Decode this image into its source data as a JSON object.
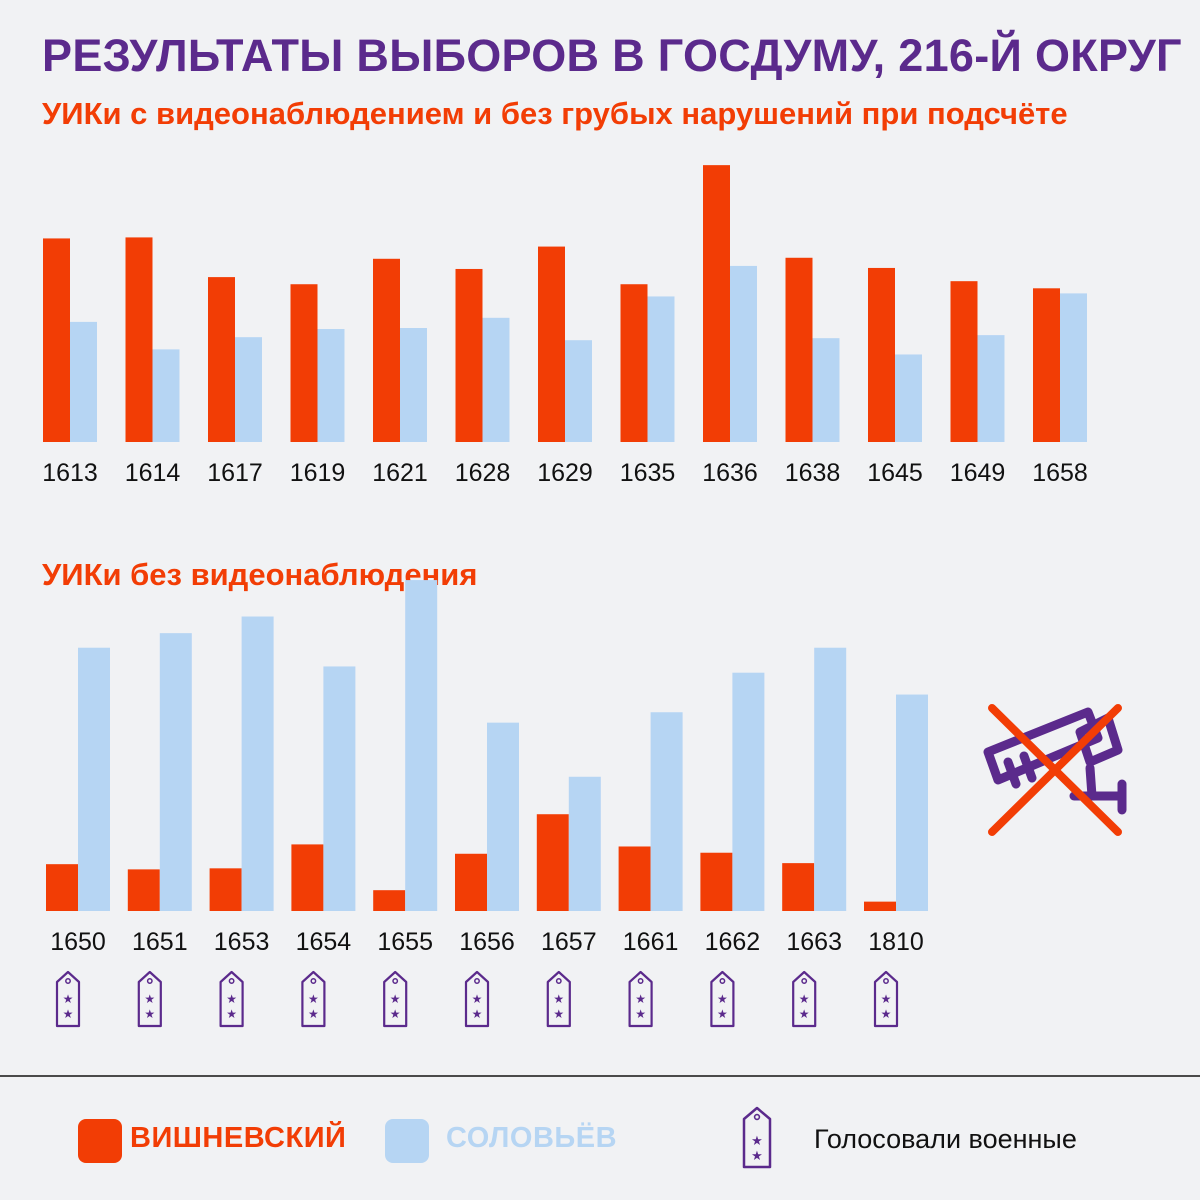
{
  "title": "РЕЗУЛЬТАТЫ ВЫБОРОВ В ГОСДУМУ, 216-Й ОКРУГ",
  "colors": {
    "vishnevsky": "#f23d05",
    "solovyov": "#b6d5f3",
    "accent": "#5b2a8c",
    "background": "#f1f2f4"
  },
  "chart_data": [
    {
      "type": "bar",
      "title": "УИКи с видеонаблюдением и без грубых нарушений при подсчёте",
      "categories": [
        "1613",
        "1614",
        "1617",
        "1619",
        "1621",
        "1628",
        "1629",
        "1635",
        "1636",
        "1638",
        "1645",
        "1649",
        "1658"
      ],
      "series": [
        {
          "name": "ВИШНЕВСКИЙ",
          "values": [
            200,
            201,
            162,
            155,
            180,
            170,
            192,
            155,
            272,
            181,
            171,
            158,
            151
          ]
        },
        {
          "name": "СОЛОВЬЁВ",
          "values": [
            118,
            91,
            103,
            111,
            112,
            122,
            100,
            143,
            173,
            102,
            86,
            105,
            146
          ]
        }
      ],
      "ylim": [
        0,
        280
      ],
      "grid": false,
      "xlabel": "",
      "ylabel": ""
    },
    {
      "type": "bar",
      "title": "УИКи без видеонаблюдения",
      "categories": [
        "1650",
        "1651",
        "1653",
        "1654",
        "1655",
        "1656",
        "1657",
        "1661",
        "1662",
        "1663",
        "1810"
      ],
      "series": [
        {
          "name": "ВИШНЕВСКИЙ",
          "values": [
            45,
            40,
            41,
            64,
            20,
            55,
            93,
            62,
            56,
            46,
            9
          ]
        },
        {
          "name": "СОЛОВЬЁВ",
          "values": [
            253,
            267,
            283,
            235,
            318,
            181,
            129,
            191,
            229,
            253,
            208
          ]
        }
      ],
      "military": [
        true,
        true,
        true,
        true,
        true,
        true,
        true,
        true,
        true,
        true,
        true
      ],
      "ylim": [
        0,
        320
      ],
      "grid": false,
      "xlabel": "",
      "ylabel": ""
    }
  ],
  "legend": {
    "vishnevsky": "ВИШНЕВСКИЙ",
    "solovyov": "СОЛОВЬЁВ",
    "military": "Голосовали военные"
  },
  "icons": {
    "no_camera": "crossed-out-camera-icon",
    "military": "shoulder-strap-icon"
  }
}
